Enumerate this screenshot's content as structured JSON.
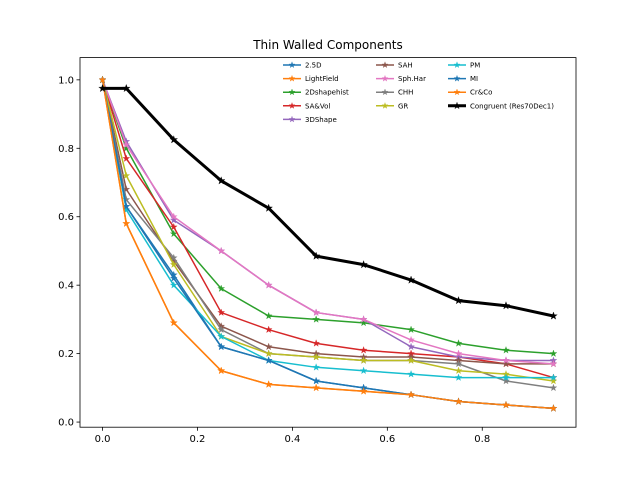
{
  "chart_data": {
    "type": "line",
    "title": "Thin Walled Components",
    "xlabel": "",
    "ylabel": "",
    "xlim": [
      -0.0475,
      0.9975
    ],
    "ylim": [
      -0.015,
      1.065
    ],
    "grid": false,
    "legend_placement": "top-right",
    "x_ticks": [
      0.0,
      0.2,
      0.4,
      0.6,
      0.8
    ],
    "x_tick_labels": [
      "0.0",
      "0.2",
      "0.4",
      "0.6",
      "0.8"
    ],
    "y_ticks": [
      0.0,
      0.2,
      0.4,
      0.6,
      0.8,
      1.0
    ],
    "y_tick_labels": [
      "0.0",
      "0.2",
      "0.4",
      "0.6",
      "0.8",
      "1.0"
    ],
    "x": [
      0.0,
      0.05,
      0.15,
      0.25,
      0.35,
      0.45,
      0.55,
      0.65,
      0.75,
      0.85,
      0.95
    ],
    "series": [
      {
        "name": "2.5D",
        "color": "#1f77b4",
        "values": [
          1.0,
          0.63,
          0.43,
          0.22,
          0.18,
          0.12,
          0.1,
          0.08,
          0.06,
          0.05,
          0.04
        ]
      },
      {
        "name": "LightField",
        "color": "#ff7f0e",
        "values": [
          1.0,
          0.58,
          0.29,
          0.15,
          0.11,
          0.1,
          0.09,
          0.08,
          0.06,
          0.05,
          0.04
        ]
      },
      {
        "name": "2Dshapehist",
        "color": "#2ca02c",
        "values": [
          1.0,
          0.8,
          0.55,
          0.39,
          0.31,
          0.3,
          0.29,
          0.27,
          0.23,
          0.21,
          0.2
        ]
      },
      {
        "name": "SA&Vol",
        "color": "#d62728",
        "values": [
          1.0,
          0.77,
          0.57,
          0.32,
          0.27,
          0.23,
          0.21,
          0.2,
          0.19,
          0.17,
          0.13
        ]
      },
      {
        "name": "3DShape",
        "color": "#9467bd",
        "values": [
          1.0,
          0.82,
          0.59,
          0.5,
          0.4,
          0.32,
          0.3,
          0.22,
          0.19,
          0.18,
          0.18
        ]
      },
      {
        "name": "SAH",
        "color": "#8c564b",
        "values": [
          1.0,
          0.68,
          0.47,
          0.28,
          0.22,
          0.2,
          0.19,
          0.19,
          0.18,
          0.17,
          0.17
        ]
      },
      {
        "name": "Sph.Har",
        "color": "#e377c2",
        "values": [
          1.0,
          0.81,
          0.6,
          0.5,
          0.4,
          0.32,
          0.3,
          0.24,
          0.2,
          0.18,
          0.17
        ]
      },
      {
        "name": "CHH",
        "color": "#7f7f7f",
        "values": [
          1.0,
          0.65,
          0.48,
          0.27,
          0.2,
          0.19,
          0.18,
          0.18,
          0.17,
          0.12,
          0.1
        ]
      },
      {
        "name": "GR",
        "color": "#bcbd22",
        "values": [
          1.0,
          0.72,
          0.46,
          0.25,
          0.2,
          0.19,
          0.18,
          0.18,
          0.15,
          0.14,
          0.12
        ]
      },
      {
        "name": "PM",
        "color": "#17becf",
        "values": [
          1.0,
          0.62,
          0.4,
          0.25,
          0.18,
          0.16,
          0.15,
          0.14,
          0.13,
          0.13,
          0.13
        ]
      },
      {
        "name": "MI",
        "color": "#1f77b4",
        "values": [
          1.0,
          0.63,
          0.42,
          0.22,
          0.18,
          0.12,
          0.1,
          0.08,
          0.06,
          0.05,
          0.04
        ]
      },
      {
        "name": "Cr&Co",
        "color": "#ff7f0e",
        "values": [
          1.0,
          0.58,
          0.29,
          0.15,
          0.11,
          0.1,
          0.09,
          0.08,
          0.06,
          0.05,
          0.04
        ]
      },
      {
        "name": "Congruent (Res70Dec1)",
        "color": "#000000",
        "bold": true,
        "x": [
          0.0,
          0.05,
          0.15,
          0.25,
          0.35,
          0.45,
          0.55,
          0.65,
          0.75,
          0.85,
          0.95
        ],
        "values": [
          0.975,
          0.975,
          0.825,
          0.705,
          0.625,
          0.485,
          0.46,
          0.415,
          0.355,
          0.34,
          0.31
        ]
      }
    ]
  }
}
